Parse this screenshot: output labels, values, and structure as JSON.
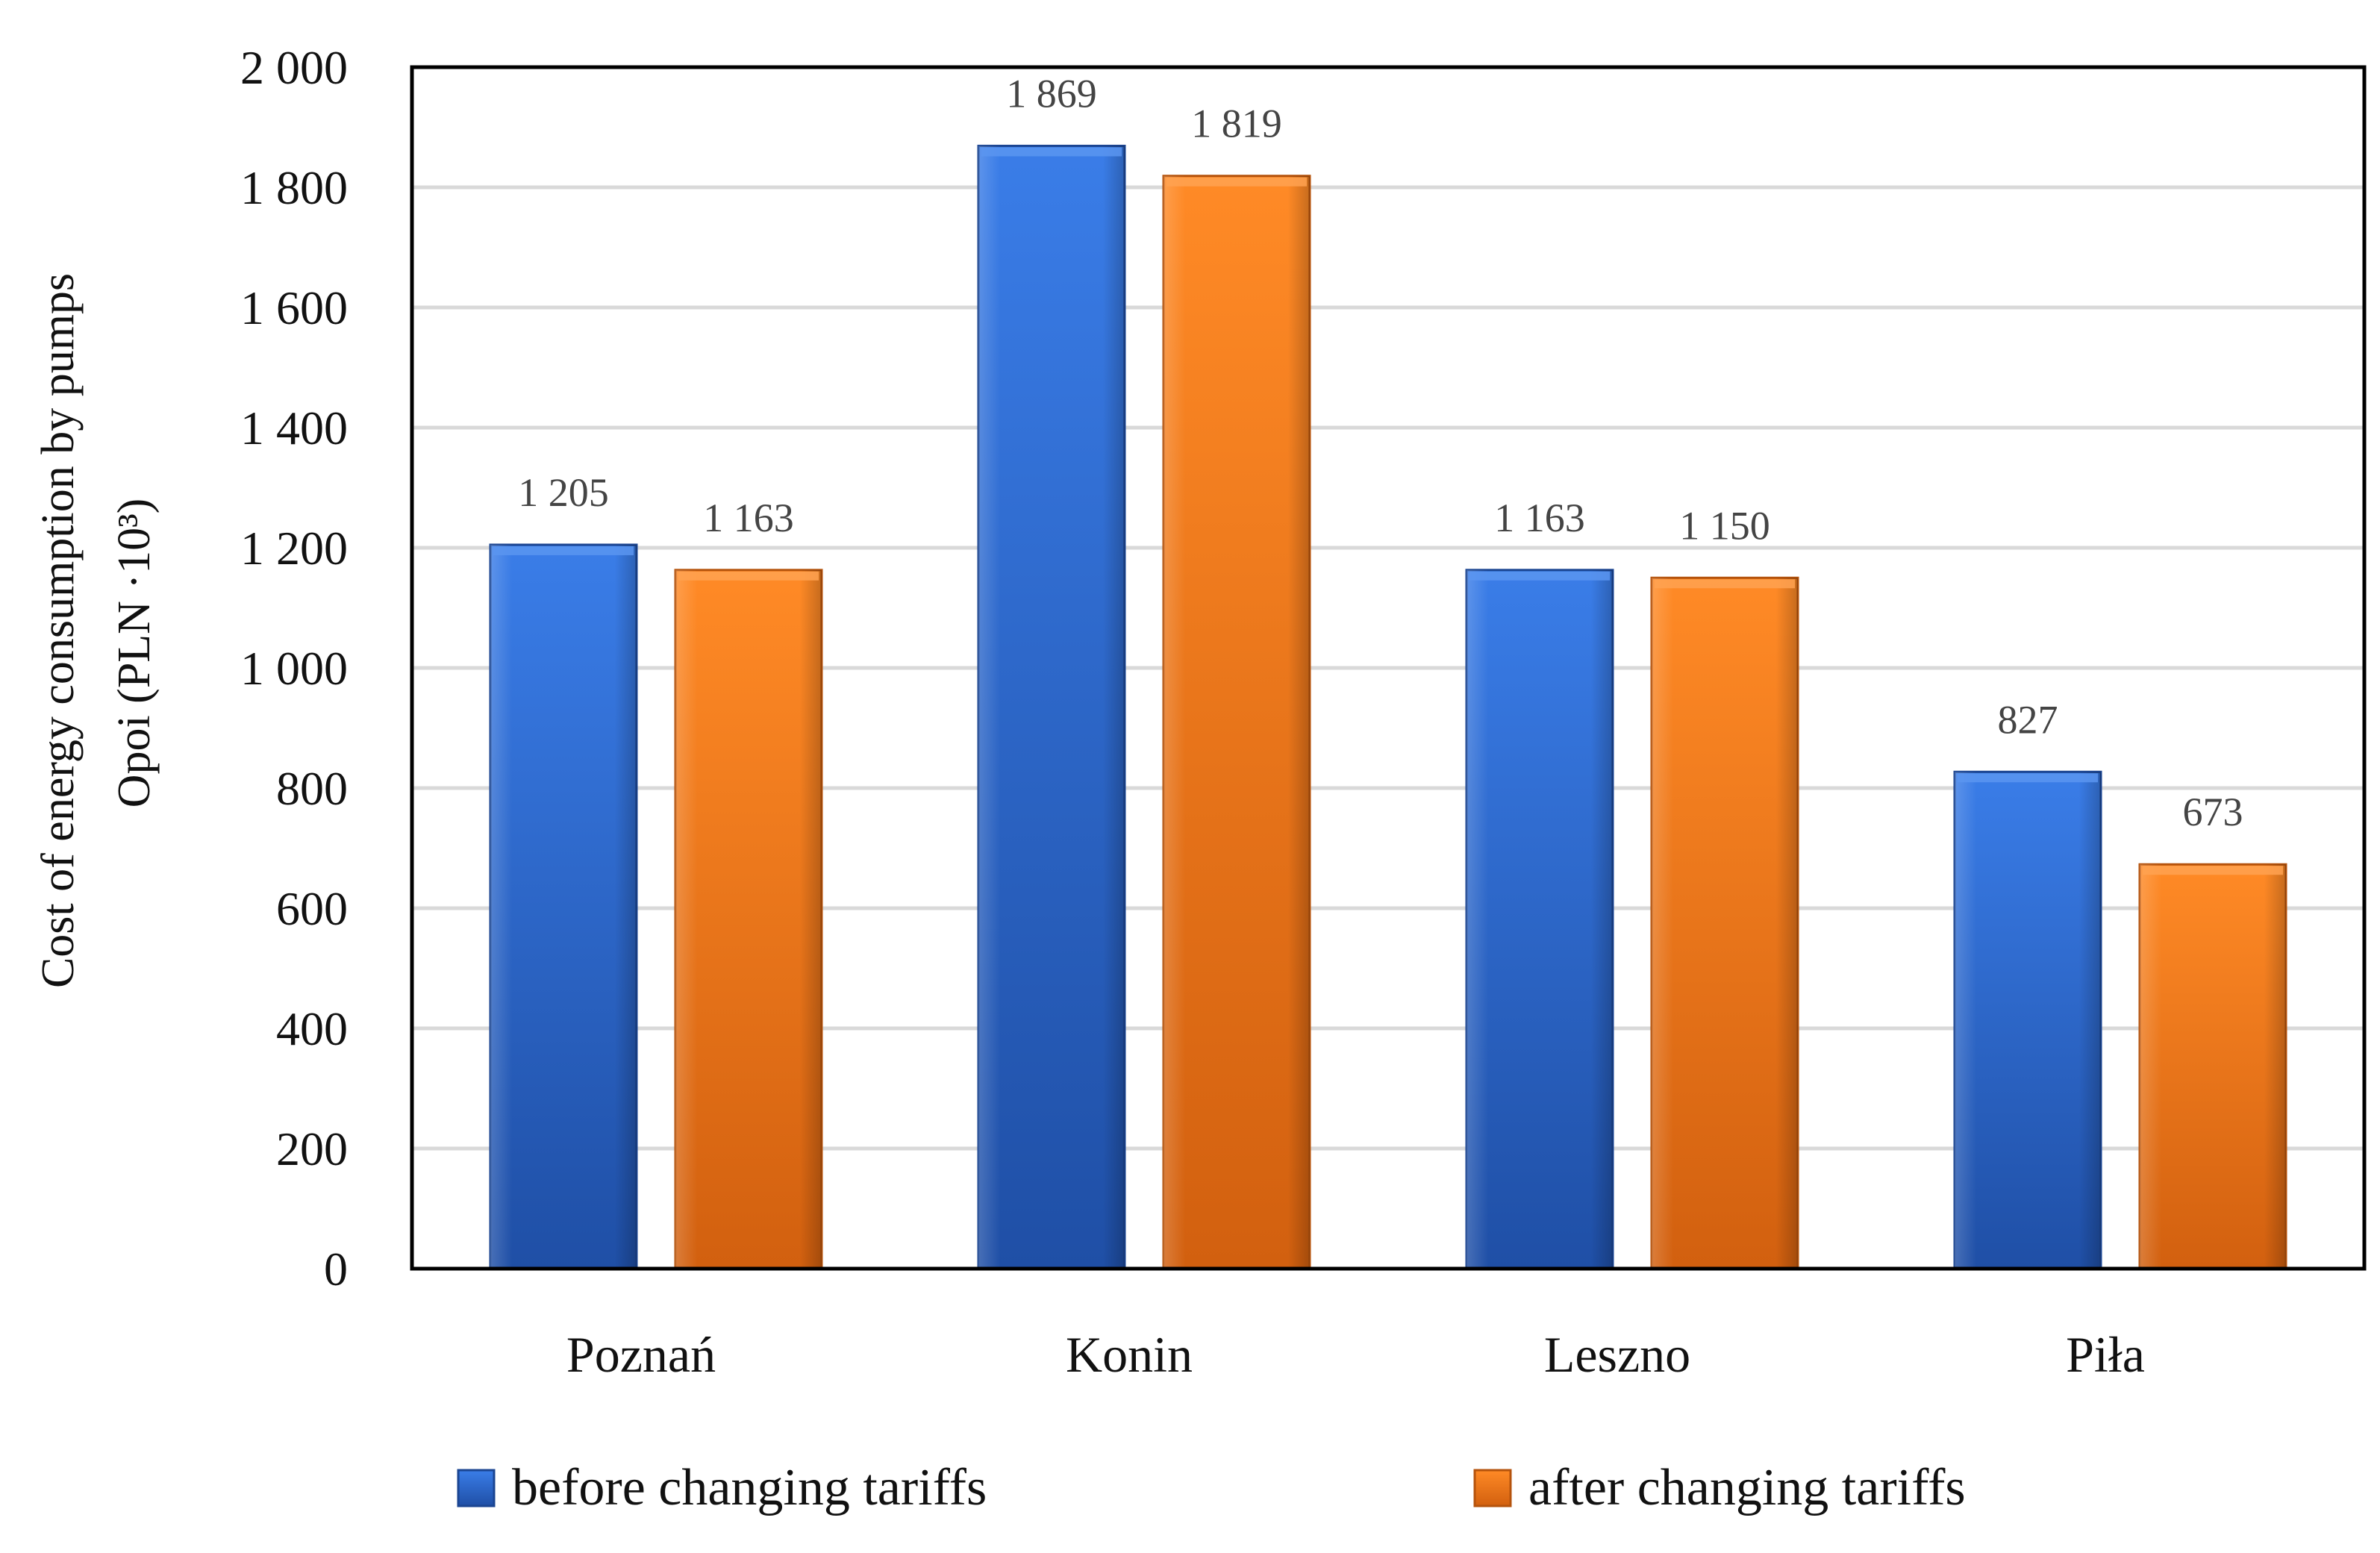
{
  "chart_data": {
    "type": "bar",
    "title": "",
    "categories": [
      "Poznań",
      "Konin",
      "Leszno",
      "Piła"
    ],
    "series": [
      {
        "name": "before changing tariffs",
        "color": "#2e6fd8",
        "values": [
          1205,
          1869,
          1163,
          827
        ]
      },
      {
        "name": "after changing tariffs",
        "color": "#f57c1e",
        "values": [
          1163,
          1819,
          1150,
          673
        ]
      }
    ],
    "data_labels": [
      [
        "1 205",
        "1 869",
        "1 163",
        "827"
      ],
      [
        "1 163",
        "1 819",
        "1 150",
        "673"
      ]
    ],
    "ylim": [
      0,
      2000
    ],
    "yticks": [
      0,
      200,
      400,
      600,
      800,
      1000,
      1200,
      1400,
      1600,
      1800,
      2000
    ],
    "ytick_labels": [
      "0",
      "200",
      "400",
      "600",
      "800",
      "1 000",
      "1 200",
      "1 400",
      "1 600",
      "1 800",
      "2 000"
    ],
    "ylabel_line1": "Cost of energy  consumption by pumps",
    "ylabel_line2": "Opoi (PLN ·10³)",
    "xlabel": "",
    "grid": true,
    "legend_position": "bottom"
  }
}
